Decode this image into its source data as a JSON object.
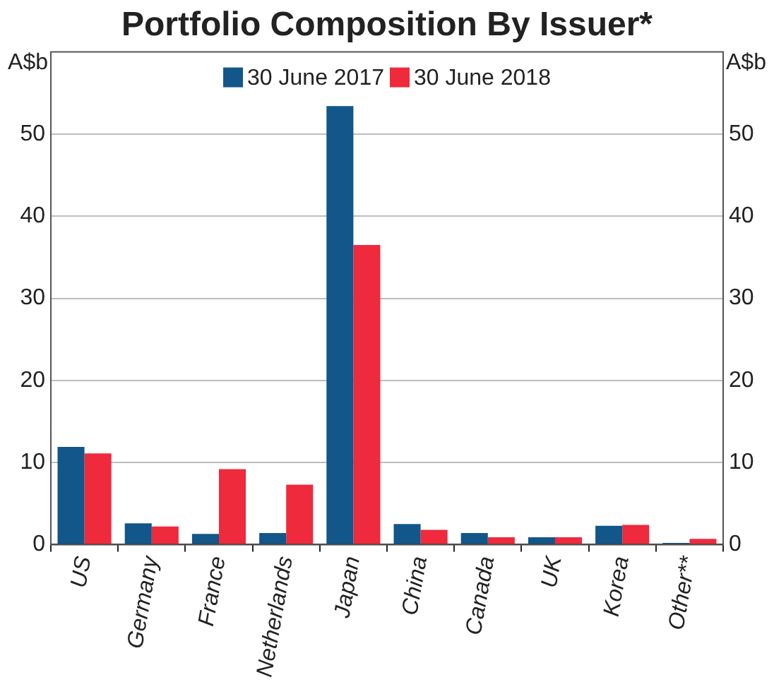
{
  "chart_data": {
    "type": "bar",
    "title": "Portfolio Composition By Issuer*",
    "ylabel": "A$b",
    "y2label": "A$b",
    "categories": [
      "US",
      "Germany",
      "France",
      "Netherlands",
      "Japan",
      "China",
      "Canada",
      "UK",
      "Korea",
      "Other**"
    ],
    "series": [
      {
        "name": "30 June 2017",
        "color": "#12568a",
        "values": [
          11.9,
          2.6,
          1.3,
          1.4,
          53.4,
          2.5,
          1.4,
          0.9,
          2.3,
          0.2
        ]
      },
      {
        "name": "30 June 2018",
        "color": "#ee2a3c",
        "values": [
          11.1,
          2.2,
          9.2,
          7.3,
          36.5,
          1.8,
          0.9,
          0.9,
          2.4,
          0.7
        ]
      }
    ],
    "ylim": [
      0,
      60
    ],
    "yticks": [
      0,
      10,
      20,
      30,
      40,
      50
    ],
    "y2lim": [
      0,
      60
    ],
    "y2ticks": [
      0,
      10,
      20,
      30,
      40,
      50
    ],
    "grid": "y",
    "legend": "top"
  }
}
